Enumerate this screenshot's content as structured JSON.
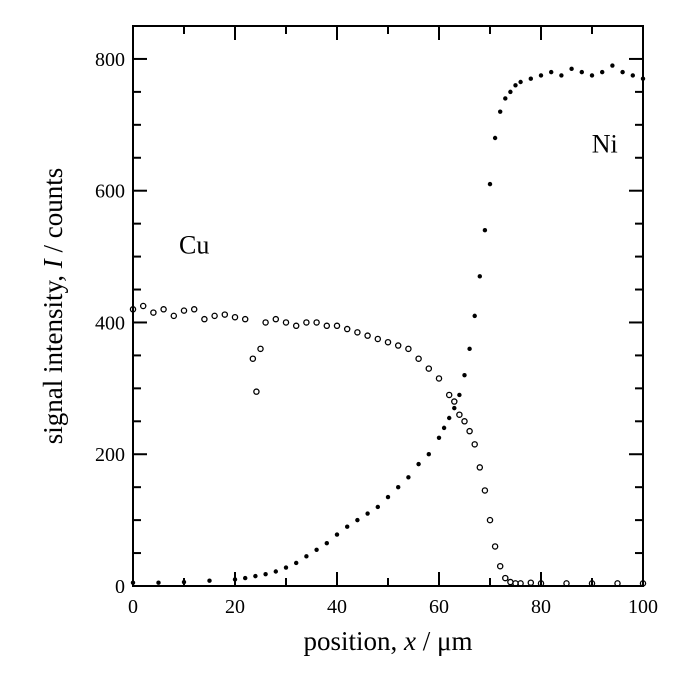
{
  "chart_data": {
    "type": "scatter",
    "title": "",
    "xlabel": {
      "pre": "position, ",
      "var": "x",
      "post": " / μm"
    },
    "ylabel": {
      "pre": "signal intensity, ",
      "var": "I",
      "post": " / counts"
    },
    "xlim": [
      0,
      100
    ],
    "ylim": [
      0,
      850
    ],
    "x_ticks": [
      0,
      20,
      40,
      60,
      80,
      100
    ],
    "y_ticks": [
      0,
      200,
      400,
      600,
      800
    ],
    "grid": false,
    "legend": "none",
    "annotations": [
      {
        "text": "Cu",
        "x": 12,
        "y": 505
      },
      {
        "text": "Ni",
        "x": 92.5,
        "y": 658
      }
    ],
    "series": [
      {
        "name": "Cu",
        "marker": "open-circle",
        "x": [
          0,
          2,
          4,
          6,
          8,
          10,
          12,
          14,
          16,
          18,
          20,
          22,
          23.5,
          24.2,
          25,
          26,
          28,
          30,
          32,
          34,
          36,
          38,
          40,
          42,
          44,
          46,
          48,
          50,
          52,
          54,
          56,
          58,
          60,
          62,
          63,
          64,
          65,
          66,
          67,
          68,
          69,
          70,
          71,
          72,
          73,
          74,
          75,
          76,
          78,
          80,
          85,
          90,
          95,
          100
        ],
        "y": [
          420,
          425,
          415,
          420,
          410,
          418,
          420,
          405,
          410,
          412,
          408,
          405,
          345,
          295,
          360,
          400,
          405,
          400,
          395,
          400,
          400,
          395,
          395,
          390,
          385,
          380,
          375,
          370,
          365,
          360,
          345,
          330,
          315,
          290,
          280,
          260,
          250,
          235,
          215,
          180,
          145,
          100,
          60,
          30,
          12,
          6,
          4,
          4,
          5,
          4,
          4,
          4,
          4,
          4
        ]
      },
      {
        "name": "Ni",
        "marker": "filled-dot",
        "x": [
          0,
          5,
          10,
          15,
          20,
          22,
          24,
          26,
          28,
          30,
          32,
          34,
          36,
          38,
          40,
          42,
          44,
          46,
          48,
          50,
          52,
          54,
          56,
          58,
          60,
          61,
          62,
          63,
          64,
          65,
          66,
          67,
          68,
          69,
          70,
          71,
          72,
          73,
          74,
          75,
          76,
          78,
          80,
          82,
          84,
          86,
          88,
          90,
          92,
          94,
          96,
          98,
          100
        ],
        "y": [
          5,
          5,
          6,
          8,
          10,
          12,
          15,
          18,
          22,
          28,
          35,
          45,
          55,
          65,
          78,
          90,
          100,
          110,
          120,
          135,
          150,
          165,
          185,
          200,
          225,
          240,
          255,
          270,
          290,
          320,
          360,
          410,
          470,
          540,
          610,
          680,
          720,
          740,
          750,
          760,
          765,
          770,
          775,
          780,
          775,
          785,
          780,
          775,
          780,
          790,
          780,
          775,
          770
        ]
      }
    ]
  }
}
